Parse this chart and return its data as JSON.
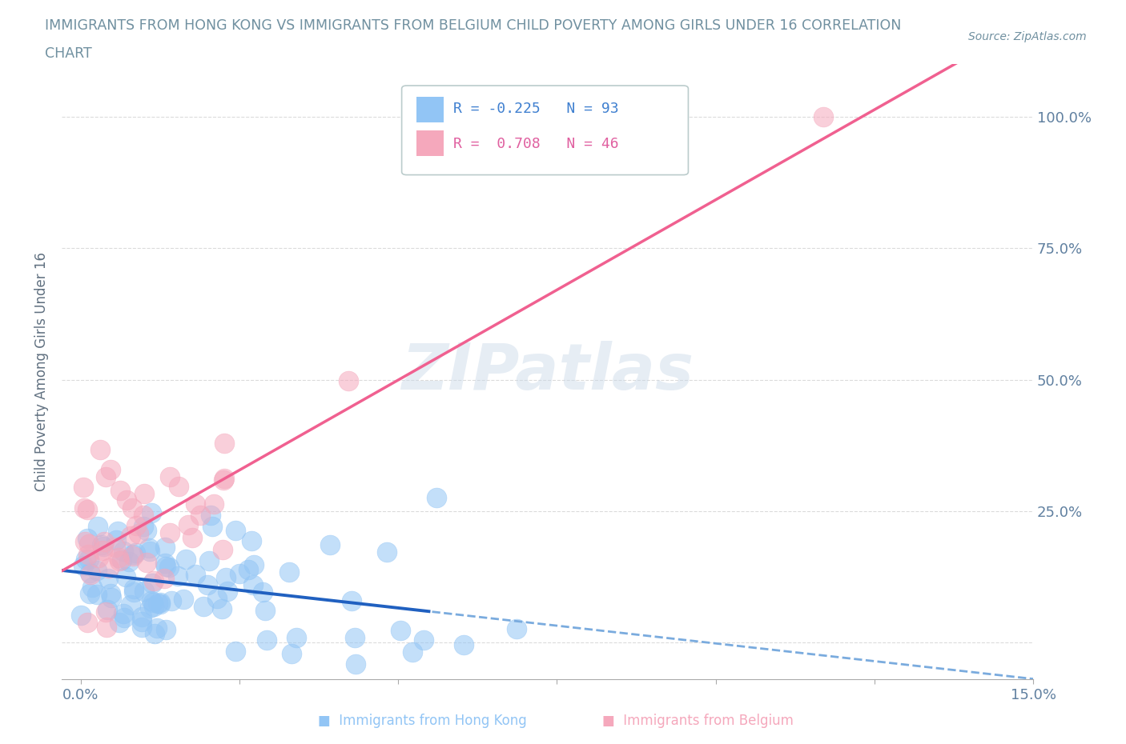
{
  "title_line1": "IMMIGRANTS FROM HONG KONG VS IMMIGRANTS FROM BELGIUM CHILD POVERTY AMONG GIRLS UNDER 16 CORRELATION",
  "title_line2": "CHART",
  "source": "Source: ZipAtlas.com",
  "ylabel": "Child Poverty Among Girls Under 16",
  "xlim": [
    -0.003,
    0.15
  ],
  "ylim": [
    -0.07,
    1.1
  ],
  "yticks": [
    0.0,
    0.25,
    0.5,
    0.75,
    1.0
  ],
  "ytick_labels": [
    "",
    "25.0%",
    "50.0%",
    "75.0%",
    "100.0%"
  ],
  "R_hk": -0.225,
  "N_hk": 93,
  "R_be": 0.708,
  "N_be": 46,
  "color_hk": "#92C5F5",
  "color_be": "#F5A8BC",
  "trendline_hk_solid_color": "#2060C0",
  "trendline_hk_dash_color": "#7AABDE",
  "trendline_be_color": "#F06090",
  "watermark": "ZIPatlas",
  "background_color": "#FFFFFF",
  "grid_color": "#CCCCCC",
  "title_color": "#7090A0",
  "axis_label_color": "#607080",
  "tick_label_color": "#6080A0",
  "legend_color_hk": "#4080D0",
  "legend_color_be": "#E060A0",
  "legend_border": "#BBCCCC",
  "bottom_legend_color_hk": "#92C5F5",
  "bottom_legend_color_be": "#F5A8BC"
}
